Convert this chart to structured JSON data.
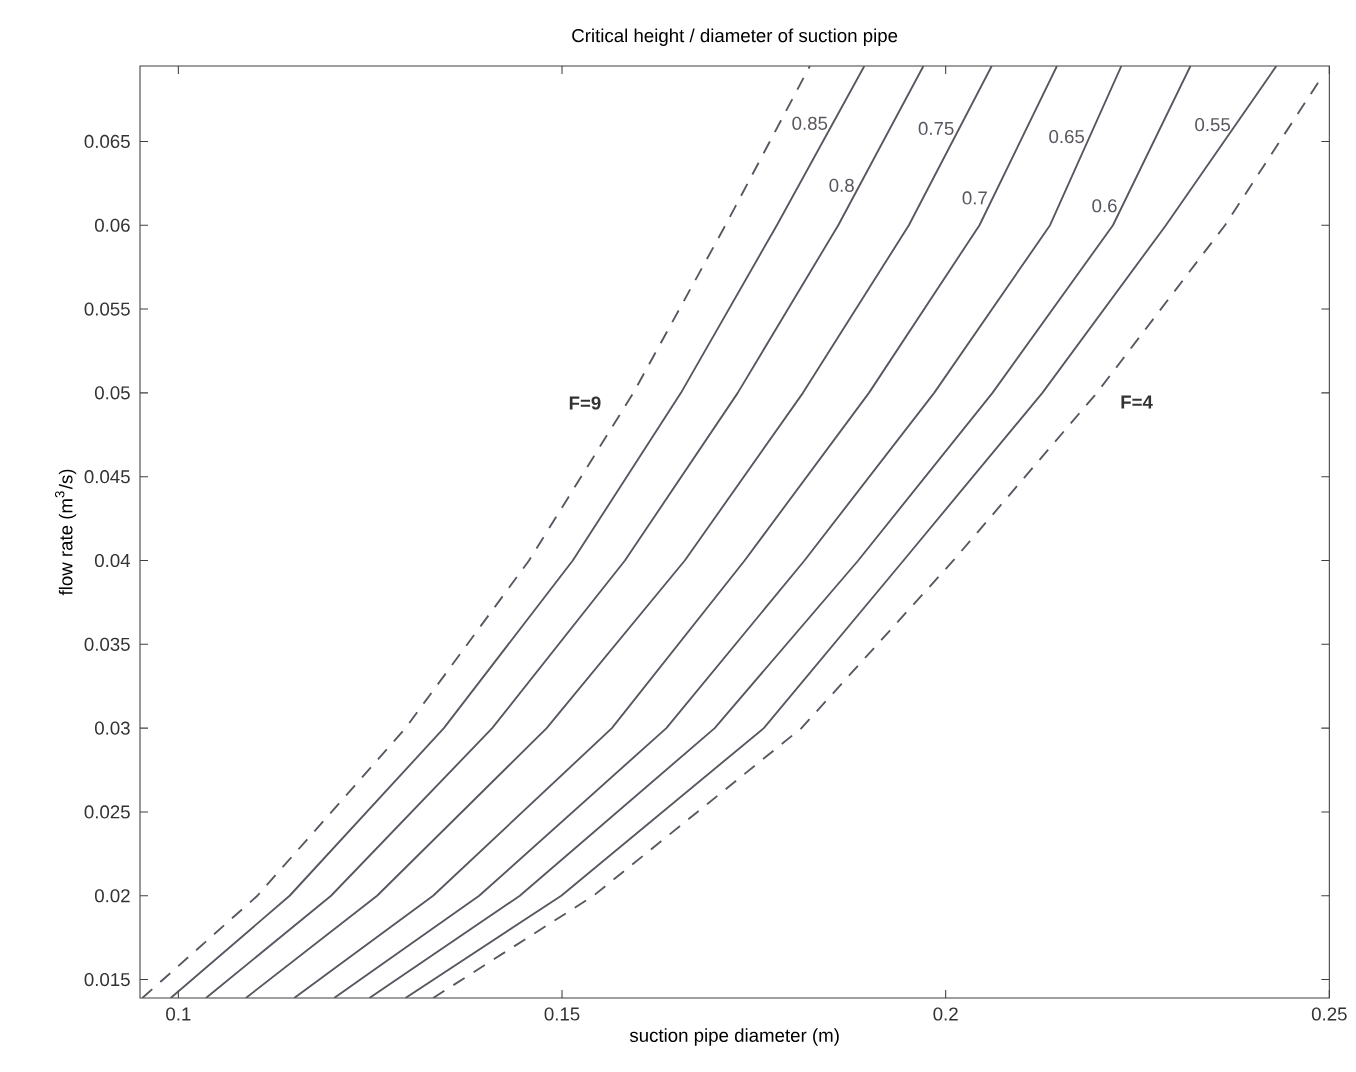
{
  "chart_data": {
    "type": "line",
    "title": "Critical height / diameter of suction pipe",
    "xlabel": "suction pipe diameter (m)",
    "ylabel": "flow rate (m$^{3}$/s)",
    "xlim": [
      0.095,
      0.25
    ],
    "ylim": [
      0.0139,
      0.0695
    ],
    "xticks": [
      0.1,
      0.15,
      0.2,
      0.25
    ],
    "yticks": [
      0.015,
      0.02,
      0.025,
      0.03,
      0.035,
      0.04,
      0.045,
      0.05,
      0.055,
      0.06,
      0.065
    ],
    "grid": false,
    "legend": false,
    "marker": "none",
    "series": [
      {
        "name": "F=9",
        "color": "#5a5560",
        "line_style": "dashed",
        "x": [
          0.0953,
          0.1103,
          0.1296,
          0.1457,
          0.1593,
          0.1713,
          0.1823
        ],
        "values": [
          0.0139,
          0.02,
          0.03,
          0.04,
          0.05,
          0.06,
          0.0695
        ]
      },
      {
        "name": "0.85",
        "color": "#5a5560",
        "line_style": "solid",
        "x": [
          0.099,
          0.1145,
          0.1346,
          0.1514,
          0.1655,
          0.178,
          0.1894
        ],
        "values": [
          0.0139,
          0.02,
          0.03,
          0.04,
          0.05,
          0.06,
          0.0695
        ]
      },
      {
        "name": "0.8",
        "color": "#5a5560",
        "line_style": "solid",
        "x": [
          0.1036,
          0.1199,
          0.1409,
          0.1582,
          0.1729,
          0.186,
          0.1971
        ],
        "values": [
          0.0139,
          0.02,
          0.03,
          0.04,
          0.05,
          0.06,
          0.0695
        ]
      },
      {
        "name": "0.75",
        "color": "#5a5560",
        "line_style": "solid",
        "x": [
          0.1088,
          0.1259,
          0.148,
          0.166,
          0.1814,
          0.1952,
          0.206
        ],
        "values": [
          0.0139,
          0.02,
          0.03,
          0.04,
          0.05,
          0.06,
          0.0695
        ]
      },
      {
        "name": "0.7",
        "color": "#5a5560",
        "line_style": "solid",
        "x": [
          0.1151,
          0.1332,
          0.1565,
          0.1738,
          0.19,
          0.2044,
          0.2145
        ],
        "values": [
          0.0139,
          0.02,
          0.03,
          0.04,
          0.05,
          0.06,
          0.0695
        ]
      },
      {
        "name": "0.65",
        "color": "#5a5560",
        "line_style": "solid",
        "x": [
          0.1203,
          0.1392,
          0.1636,
          0.1816,
          0.1985,
          0.2136,
          0.2229
        ],
        "values": [
          0.0139,
          0.02,
          0.03,
          0.04,
          0.05,
          0.06,
          0.0695
        ]
      },
      {
        "name": "0.6",
        "color": "#5a5560",
        "line_style": "solid",
        "x": [
          0.1249,
          0.1445,
          0.1699,
          0.1886,
          0.2061,
          0.2218,
          0.2319
        ],
        "values": [
          0.0139,
          0.02,
          0.03,
          0.04,
          0.05,
          0.06,
          0.0695
        ]
      },
      {
        "name": "0.55",
        "color": "#5a5560",
        "line_style": "solid",
        "x": [
          0.1296,
          0.1499,
          0.1763,
          0.1945,
          0.2126,
          0.2287,
          0.2431
        ],
        "values": [
          0.0139,
          0.02,
          0.03,
          0.04,
          0.05,
          0.06,
          0.0695
        ]
      },
      {
        "name": "F=4",
        "color": "#5a5560",
        "line_style": "dashed",
        "x": [
          0.1332,
          0.1541,
          0.1812,
          0.201,
          0.2197,
          0.2364,
          0.2491
        ],
        "values": [
          0.0139,
          0.02,
          0.03,
          0.04,
          0.05,
          0.06,
          0.0689
        ]
      }
    ]
  }
}
